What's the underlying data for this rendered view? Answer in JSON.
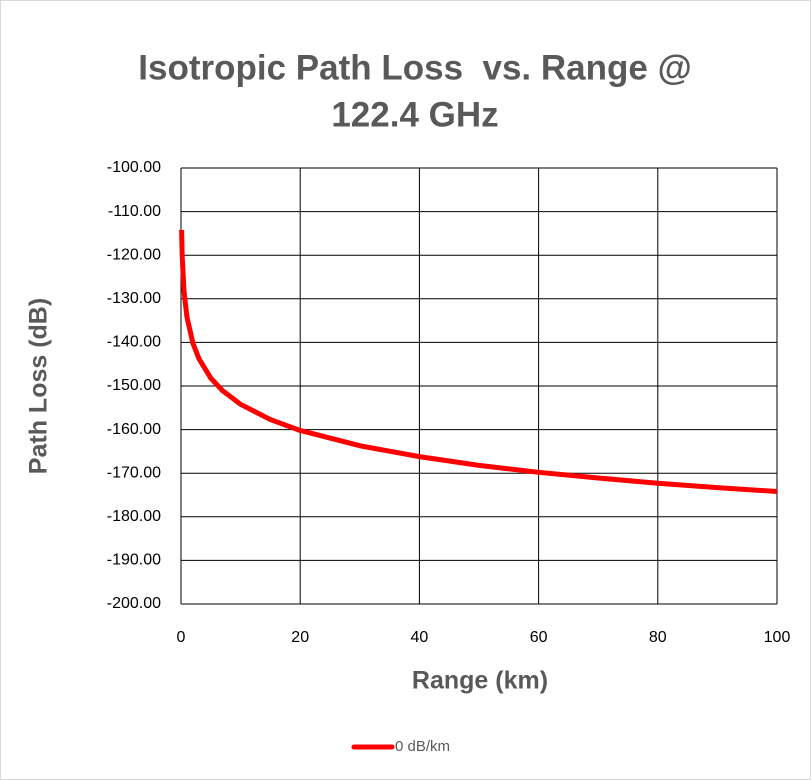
{
  "chart_data": {
    "type": "line",
    "title": [
      "Isotropic Path Loss  vs. Range @",
      "122.4 GHz"
    ],
    "x_label": "Range (km)",
    "y_label": "Path Loss (dB)",
    "x": [
      0.1,
      0.2,
      0.5,
      1,
      2,
      3,
      5,
      7,
      10,
      15,
      20,
      30,
      40,
      50,
      60,
      70,
      80,
      90,
      100
    ],
    "series": [
      {
        "name": "0 dB/km",
        "color": "#ff0000",
        "values": [
          -114.2,
          -120.2,
          -128.2,
          -134.2,
          -140.2,
          -143.7,
          -148.2,
          -151.1,
          -154.2,
          -157.7,
          -160.2,
          -163.7,
          -166.2,
          -168.2,
          -169.8,
          -171.1,
          -172.3,
          -173.3,
          -174.2
        ]
      }
    ],
    "xlim": [
      0,
      100
    ],
    "xticks": [
      0,
      20,
      40,
      60,
      80,
      100
    ],
    "ylim": [
      -200,
      -100
    ],
    "yticks": [
      {
        "value": -200,
        "label": "-200.00"
      },
      {
        "value": -190,
        "label": "-190.00"
      },
      {
        "value": -180,
        "label": "-180.00"
      },
      {
        "value": -170,
        "label": "-170.00"
      },
      {
        "value": -160,
        "label": "-160.00"
      },
      {
        "value": -150,
        "label": "-150.00"
      },
      {
        "value": -140,
        "label": "-140.00"
      },
      {
        "value": -130,
        "label": "-130.00"
      },
      {
        "value": -120,
        "label": "-120.00"
      },
      {
        "value": -110,
        "label": "-110.00"
      },
      {
        "value": -100,
        "label": "-100.00"
      }
    ],
    "grid": true,
    "legend": "bottom"
  }
}
